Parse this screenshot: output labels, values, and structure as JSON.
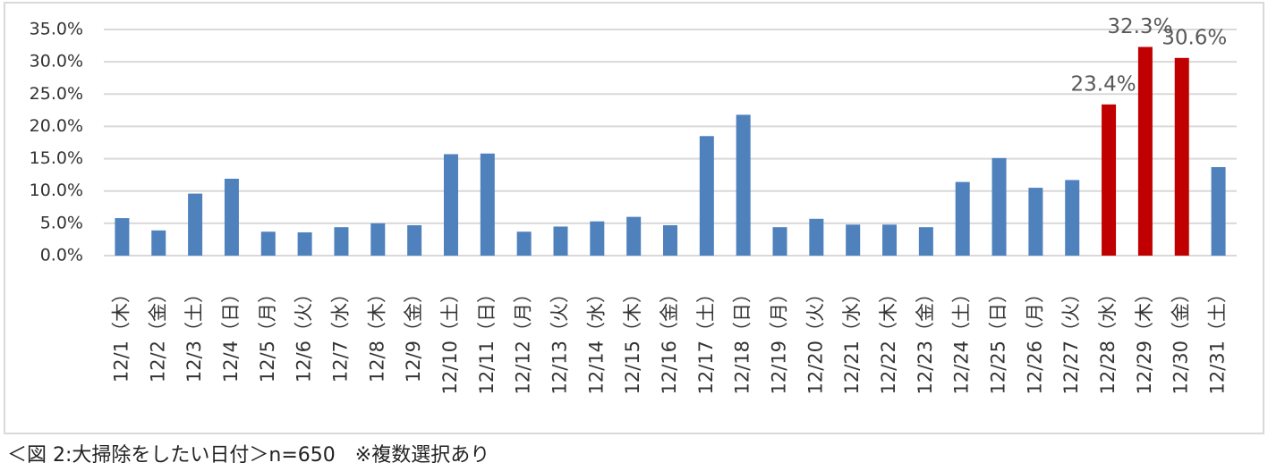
{
  "chart_data": {
    "type": "bar",
    "categories": [
      "12/1（木）",
      "12/2（金）",
      "12/3（土）",
      "12/4（日）",
      "12/5（月）",
      "12/6（火）",
      "12/7（水）",
      "12/8（木）",
      "12/9（金）",
      "12/10（土）",
      "12/11（日）",
      "12/12（月）",
      "12/13（火）",
      "12/14（水）",
      "12/15（木）",
      "12/16（金）",
      "12/17（土）",
      "12/18（日）",
      "12/19（月）",
      "12/20（火）",
      "12/21（水）",
      "12/22（木）",
      "12/23（金）",
      "12/24（土）",
      "12/25（日）",
      "12/26（月）",
      "12/27（火）",
      "12/28（水）",
      "12/29（木）",
      "12/30（金）",
      "12/31（土）"
    ],
    "values": [
      5.8,
      3.9,
      9.6,
      11.9,
      3.7,
      3.6,
      4.4,
      5.0,
      4.7,
      15.7,
      15.8,
      3.7,
      4.5,
      5.3,
      6.0,
      4.7,
      18.5,
      21.8,
      4.4,
      5.7,
      4.8,
      4.8,
      4.4,
      11.4,
      15.1,
      10.5,
      11.7,
      23.4,
      32.3,
      30.6,
      13.7
    ],
    "value_labels": [
      null,
      null,
      null,
      null,
      null,
      null,
      null,
      null,
      null,
      null,
      null,
      null,
      null,
      null,
      null,
      null,
      null,
      null,
      null,
      null,
      null,
      null,
      null,
      null,
      null,
      null,
      null,
      "23.4%",
      "32.3%",
      "30.6%",
      null
    ],
    "colors": [
      "#4f81bd",
      "#4f81bd",
      "#4f81bd",
      "#4f81bd",
      "#4f81bd",
      "#4f81bd",
      "#4f81bd",
      "#4f81bd",
      "#4f81bd",
      "#4f81bd",
      "#4f81bd",
      "#4f81bd",
      "#4f81bd",
      "#4f81bd",
      "#4f81bd",
      "#4f81bd",
      "#4f81bd",
      "#4f81bd",
      "#4f81bd",
      "#4f81bd",
      "#4f81bd",
      "#4f81bd",
      "#4f81bd",
      "#4f81bd",
      "#4f81bd",
      "#4f81bd",
      "#4f81bd",
      "#c00000",
      "#c00000",
      "#c00000",
      "#4f81bd"
    ],
    "ylim": [
      0,
      35
    ],
    "yticks": [
      {
        "value": 0,
        "label": "0.0%"
      },
      {
        "value": 5,
        "label": "5.0%"
      },
      {
        "value": 10,
        "label": "10.0%"
      },
      {
        "value": 15,
        "label": "15.0%"
      },
      {
        "value": 20,
        "label": "20.0%"
      },
      {
        "value": 25,
        "label": "25.0%"
      },
      {
        "value": 30,
        "label": "30.0%"
      },
      {
        "value": 35,
        "label": "35.0%"
      }
    ],
    "grid": true,
    "caption": "＜図 2:大掃除をしたい日付＞n=650　※複数選択あり"
  }
}
